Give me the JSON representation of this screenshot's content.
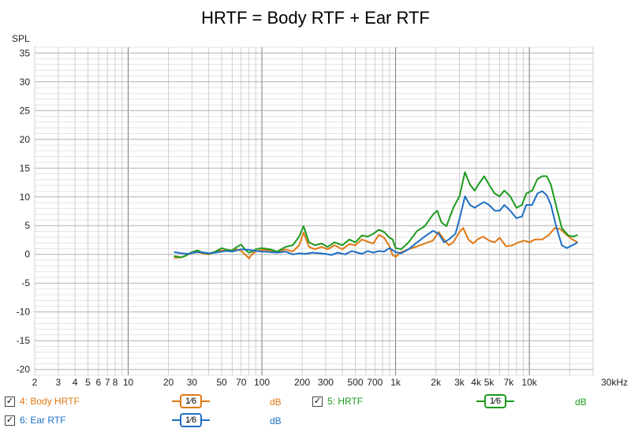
{
  "chart_data": {
    "type": "line",
    "title": "HRTF = Body RTF + Ear RTF",
    "ylabel": "SPL",
    "x_scale": "log",
    "xlim": [
      2,
      30000
    ],
    "ylim": [
      -21,
      36
    ],
    "grid": true,
    "y_ticks": [
      35,
      30,
      25,
      20,
      15,
      10,
      5,
      0,
      -5,
      -10,
      -15,
      -20
    ],
    "y_tick_labels": [
      "35",
      "30",
      "25",
      "20",
      "15",
      "10",
      "5",
      "0",
      "-5",
      "-10",
      "-15",
      "-20"
    ],
    "x_ticks": [
      2,
      3,
      4,
      5,
      6,
      7,
      8,
      10,
      20,
      30,
      50,
      70,
      100,
      200,
      300,
      500,
      700,
      1000,
      2000,
      3000,
      4000,
      5000,
      7000,
      10000,
      30000
    ],
    "x_tick_labels": [
      "2",
      "3",
      "4",
      "5",
      "6",
      "7",
      "8",
      "10",
      "20",
      "30",
      "50",
      "70",
      "100",
      "200",
      "300",
      "500",
      "700",
      "1k",
      "2k",
      "3k",
      "4k",
      "5k",
      "7k",
      "10k",
      "30kHz"
    ],
    "series": [
      {
        "name": "4: Body HRTF",
        "color": "#e07814",
        "points": [
          [
            22,
            -0.6
          ],
          [
            25,
            -0.5
          ],
          [
            27,
            -0.2
          ],
          [
            30,
            0.3
          ],
          [
            33,
            0.4
          ],
          [
            36,
            0.2
          ],
          [
            40,
            0.0
          ],
          [
            45,
            0.4
          ],
          [
            50,
            0.7
          ],
          [
            55,
            0.6
          ],
          [
            60,
            0.5
          ],
          [
            65,
            0.9
          ],
          [
            70,
            0.6
          ],
          [
            75,
            0.0
          ],
          [
            80,
            -0.7
          ],
          [
            85,
            0.1
          ],
          [
            90,
            0.5
          ],
          [
            100,
            0.8
          ],
          [
            115,
            0.7
          ],
          [
            130,
            0.3
          ],
          [
            150,
            0.9
          ],
          [
            170,
            0.5
          ],
          [
            190,
            1.6
          ],
          [
            205,
            3.8
          ],
          [
            225,
            1.3
          ],
          [
            250,
            0.9
          ],
          [
            280,
            1.3
          ],
          [
            310,
            0.9
          ],
          [
            350,
            1.6
          ],
          [
            400,
            0.9
          ],
          [
            450,
            1.8
          ],
          [
            500,
            1.6
          ],
          [
            560,
            2.6
          ],
          [
            620,
            2.2
          ],
          [
            680,
            1.9
          ],
          [
            750,
            3.4
          ],
          [
            820,
            2.9
          ],
          [
            900,
            1.4
          ],
          [
            950,
            -0.1
          ],
          [
            1000,
            -0.4
          ],
          [
            1100,
            0.4
          ],
          [
            1250,
            0.9
          ],
          [
            1450,
            1.4
          ],
          [
            1650,
            1.9
          ],
          [
            1900,
            2.4
          ],
          [
            2100,
            3.9
          ],
          [
            2300,
            2.6
          ],
          [
            2500,
            1.6
          ],
          [
            2700,
            2.1
          ],
          [
            3000,
            3.9
          ],
          [
            3200,
            4.6
          ],
          [
            3500,
            2.6
          ],
          [
            3800,
            1.9
          ],
          [
            4100,
            2.6
          ],
          [
            4500,
            3.1
          ],
          [
            5000,
            2.4
          ],
          [
            5500,
            2.1
          ],
          [
            6000,
            2.9
          ],
          [
            6700,
            1.4
          ],
          [
            7500,
            1.6
          ],
          [
            8300,
            2.1
          ],
          [
            9200,
            2.4
          ],
          [
            10000,
            2.1
          ],
          [
            11000,
            2.6
          ],
          [
            12500,
            2.6
          ],
          [
            14000,
            3.4
          ],
          [
            15500,
            4.6
          ],
          [
            17000,
            4.4
          ],
          [
            19000,
            3.4
          ],
          [
            21000,
            2.6
          ],
          [
            23000,
            2.1
          ]
        ]
      },
      {
        "name": "5: HRTF",
        "color": "#1d9a1d",
        "points": [
          [
            22,
            -0.3
          ],
          [
            25,
            -0.5
          ],
          [
            27,
            -0.2
          ],
          [
            30,
            0.4
          ],
          [
            33,
            0.7
          ],
          [
            36,
            0.3
          ],
          [
            40,
            0.1
          ],
          [
            45,
            0.5
          ],
          [
            50,
            1.1
          ],
          [
            55,
            0.8
          ],
          [
            60,
            0.7
          ],
          [
            65,
            1.3
          ],
          [
            70,
            1.7
          ],
          [
            75,
            0.8
          ],
          [
            80,
            0.3
          ],
          [
            85,
            0.5
          ],
          [
            90,
            0.9
          ],
          [
            100,
            1.1
          ],
          [
            115,
            0.9
          ],
          [
            130,
            0.5
          ],
          [
            150,
            1.3
          ],
          [
            170,
            1.6
          ],
          [
            190,
            3.1
          ],
          [
            205,
            4.9
          ],
          [
            225,
            2.1
          ],
          [
            250,
            1.6
          ],
          [
            280,
            1.9
          ],
          [
            310,
            1.3
          ],
          [
            350,
            2.1
          ],
          [
            400,
            1.6
          ],
          [
            450,
            2.6
          ],
          [
            500,
            2.1
          ],
          [
            560,
            3.3
          ],
          [
            620,
            3.1
          ],
          [
            680,
            3.6
          ],
          [
            750,
            4.3
          ],
          [
            820,
            3.9
          ],
          [
            900,
            2.9
          ],
          [
            950,
            2.6
          ],
          [
            1000,
            1.1
          ],
          [
            1100,
            0.9
          ],
          [
            1250,
            2.1
          ],
          [
            1450,
            4.1
          ],
          [
            1650,
            4.9
          ],
          [
            1900,
            6.9
          ],
          [
            2050,
            7.6
          ],
          [
            2200,
            5.6
          ],
          [
            2400,
            4.9
          ],
          [
            2700,
            8.1
          ],
          [
            3000,
            10.1
          ],
          [
            3300,
            14.3
          ],
          [
            3600,
            12.1
          ],
          [
            3900,
            11.1
          ],
          [
            4200,
            12.3
          ],
          [
            4600,
            13.6
          ],
          [
            5000,
            12.1
          ],
          [
            5500,
            10.6
          ],
          [
            6000,
            10.1
          ],
          [
            6500,
            11.1
          ],
          [
            7200,
            10.1
          ],
          [
            8000,
            8.1
          ],
          [
            8800,
            8.6
          ],
          [
            9500,
            10.6
          ],
          [
            10500,
            11.1
          ],
          [
            11500,
            13.1
          ],
          [
            12500,
            13.6
          ],
          [
            13500,
            13.6
          ],
          [
            14500,
            12.1
          ],
          [
            16000,
            8.1
          ],
          [
            17500,
            4.6
          ],
          [
            19500,
            3.3
          ],
          [
            21500,
            3.1
          ],
          [
            23000,
            3.4
          ]
        ]
      },
      {
        "name": "6: Ear RTF",
        "color": "#1e6fc4",
        "points": [
          [
            22,
            0.4
          ],
          [
            25,
            0.2
          ],
          [
            28,
            0.1
          ],
          [
            31,
            0.3
          ],
          [
            35,
            0.4
          ],
          [
            40,
            0.2
          ],
          [
            45,
            0.3
          ],
          [
            50,
            0.5
          ],
          [
            55,
            0.6
          ],
          [
            60,
            0.5
          ],
          [
            70,
            0.9
          ],
          [
            80,
            0.8
          ],
          [
            90,
            0.6
          ],
          [
            100,
            0.5
          ],
          [
            115,
            0.4
          ],
          [
            130,
            0.3
          ],
          [
            150,
            0.5
          ],
          [
            170,
            0.0
          ],
          [
            190,
            0.2
          ],
          [
            210,
            0.1
          ],
          [
            240,
            0.3
          ],
          [
            270,
            0.2
          ],
          [
            300,
            0.1
          ],
          [
            330,
            -0.1
          ],
          [
            370,
            0.3
          ],
          [
            420,
            0.0
          ],
          [
            470,
            0.6
          ],
          [
            520,
            0.3
          ],
          [
            560,
            0.1
          ],
          [
            620,
            0.6
          ],
          [
            680,
            0.3
          ],
          [
            750,
            0.6
          ],
          [
            820,
            0.5
          ],
          [
            900,
            1.1
          ],
          [
            1000,
            0.4
          ],
          [
            1100,
            0.2
          ],
          [
            1250,
            0.9
          ],
          [
            1450,
            2.1
          ],
          [
            1650,
            3.1
          ],
          [
            1900,
            4.1
          ],
          [
            2100,
            3.6
          ],
          [
            2300,
            2.1
          ],
          [
            2500,
            2.6
          ],
          [
            2800,
            3.6
          ],
          [
            3000,
            6.1
          ],
          [
            3300,
            10.1
          ],
          [
            3600,
            8.6
          ],
          [
            3900,
            8.1
          ],
          [
            4200,
            8.6
          ],
          [
            4600,
            9.1
          ],
          [
            5000,
            8.6
          ],
          [
            5500,
            7.6
          ],
          [
            6000,
            7.6
          ],
          [
            6500,
            8.6
          ],
          [
            7200,
            7.6
          ],
          [
            8000,
            6.3
          ],
          [
            8800,
            6.6
          ],
          [
            9500,
            8.6
          ],
          [
            10500,
            8.6
          ],
          [
            11500,
            10.6
          ],
          [
            12500,
            11.0
          ],
          [
            13500,
            10.3
          ],
          [
            14500,
            8.6
          ],
          [
            16000,
            4.6
          ],
          [
            17500,
            1.6
          ],
          [
            19000,
            1.1
          ],
          [
            21000,
            1.6
          ],
          [
            23000,
            2.1
          ]
        ]
      }
    ]
  },
  "legend": {
    "items": [
      {
        "label": "4: Body HRTF",
        "checked": "✓",
        "smoothing": "1⁄6",
        "unit": "dB",
        "color": "#e07814"
      },
      {
        "label": "5: HRTF",
        "checked": "✓",
        "smoothing": "1⁄6",
        "unit": "dB",
        "color": "#1d9a1d"
      },
      {
        "label": "6: Ear RTF",
        "checked": "✓",
        "smoothing": "1⁄6",
        "unit": "dB",
        "color": "#1e6fc4"
      }
    ]
  }
}
